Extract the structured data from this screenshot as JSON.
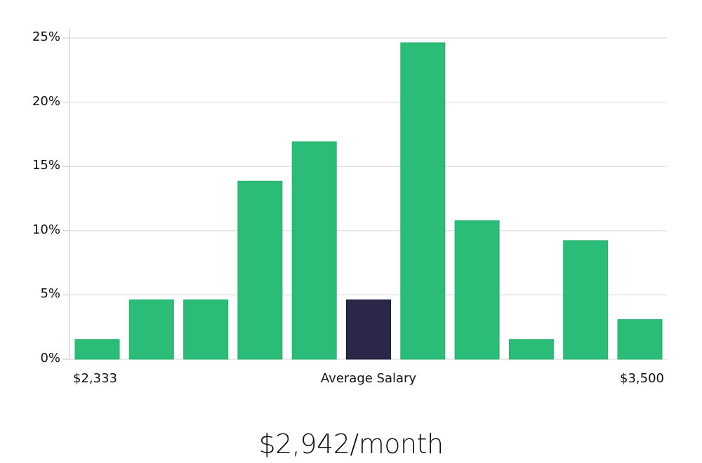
{
  "chart_data": {
    "type": "bar",
    "title": "",
    "xlabel": "Average Salary",
    "ylabel": "",
    "ylim": [
      0,
      25
    ],
    "y_ticks": [
      "0%",
      "5%",
      "10%",
      "15%",
      "20%",
      "25%"
    ],
    "y_tick_values": [
      0,
      5,
      10,
      15,
      20,
      25
    ],
    "x_range_labels": {
      "min": "$2,333",
      "max": "$3,500"
    },
    "categories": [
      "bin1",
      "bin2",
      "bin3",
      "bin4",
      "bin5",
      "bin6",
      "bin7",
      "bin8",
      "bin9",
      "bin10",
      "bin11"
    ],
    "values": [
      1.54,
      4.62,
      4.62,
      13.85,
      16.92,
      4.62,
      24.62,
      10.77,
      1.54,
      9.23,
      3.08
    ],
    "highlighted_index": 5,
    "grid": true,
    "legend": null
  },
  "colors": {
    "bar": "#2bbd77",
    "bar_highlight": "#2a2748",
    "grid": "#dcdcdc",
    "axis": "#cfcfcf"
  },
  "axis": {
    "x_min_label": "$2,333",
    "x_center_label": "Average Salary",
    "x_max_label": "$3,500"
  },
  "summary": {
    "headline": "$2,942/month"
  }
}
